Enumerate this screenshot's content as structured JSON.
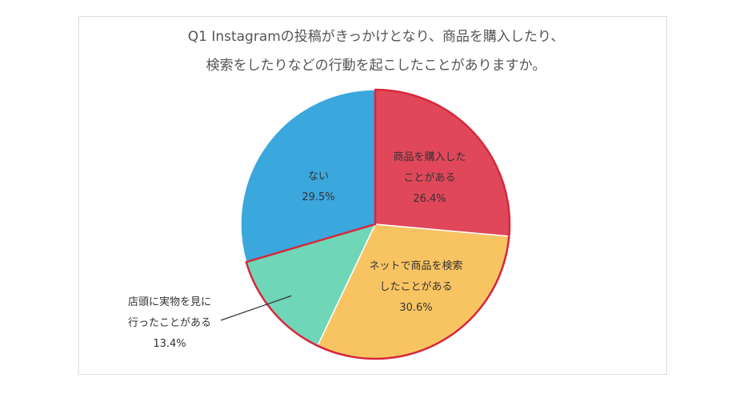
{
  "chart_data": {
    "type": "pie",
    "title_lines": [
      "Q1 Instagramの投稿がきっかけとなり、商品を購入したり、",
      "検索をしたりなどの行動を起こしたことがありますか。"
    ],
    "slices": [
      {
        "label_lines": [
          "商品を購入した",
          "ことがある"
        ],
        "value": 26.4,
        "value_label": "26.4%",
        "color": "#e0475a"
      },
      {
        "label_lines": [
          "ネットで商品を検索",
          "したことがある"
        ],
        "value": 30.6,
        "value_label": "30.6%",
        "color": "#f8c462"
      },
      {
        "label_lines": [
          "店頭に実物を見に",
          "行ったことがある"
        ],
        "value": 13.4,
        "value_label": "13.4%",
        "color": "#6fd6b8"
      },
      {
        "label_lines": [
          "ない"
        ],
        "value": 29.5,
        "value_label": "29.5%",
        "color": "#3aa7dd"
      }
    ],
    "start_angle": "12 o'clock",
    "direction": "clockwise",
    "highlight_outline_color": "#d6283c",
    "legend": "none"
  }
}
